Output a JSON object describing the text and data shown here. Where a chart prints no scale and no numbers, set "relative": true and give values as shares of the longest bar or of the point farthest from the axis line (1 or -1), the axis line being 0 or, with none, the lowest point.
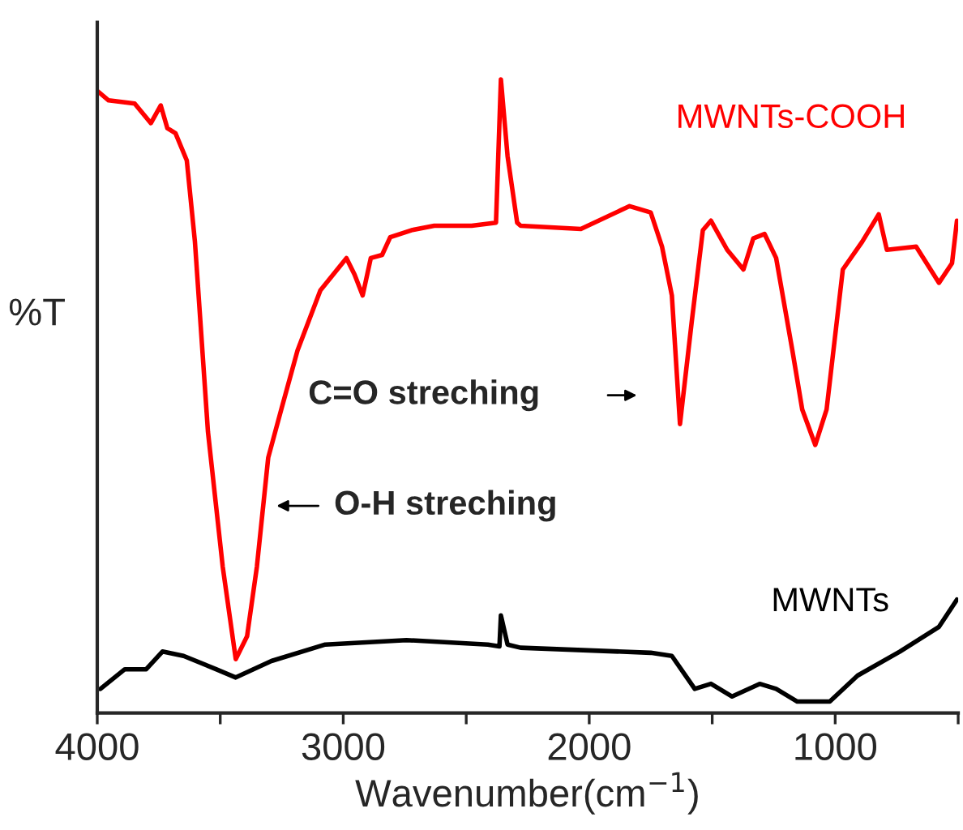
{
  "chart_data": {
    "type": "line",
    "relative": true,
    "xlabel": "Wavenumber(cm$^{−1}$)",
    "ylabel": "%T",
    "xlim": [
      4000,
      500
    ],
    "xticks": [
      4000,
      {
        "value": 3500,
        "label": null
      },
      3000,
      {
        "value": 2500,
        "label": null
      },
      2000,
      {
        "value": 1500,
        "label": null
      },
      1000,
      {
        "value": 500,
        "label": null
      }
    ],
    "grid": false,
    "legend": false,
    "line_style": "solid",
    "marker": "none",
    "series": [
      {
        "name": "MWNTs-COOH",
        "color": "#ff0000",
        "x": [
          4000,
          3954,
          3848,
          3782,
          3742,
          3715,
          3682,
          3636,
          3603,
          3550,
          3490,
          3437,
          3391,
          3351,
          3305,
          3252,
          3186,
          3093,
          2987,
          2954,
          2921,
          2888,
          2842,
          2809,
          2723,
          2630,
          2478,
          2379,
          2359,
          2332,
          2293,
          2279,
          2034,
          1836,
          1750,
          1704,
          1664,
          1631,
          1584,
          1538,
          1505,
          1439,
          1373,
          1333,
          1287,
          1240,
          1174,
          1134,
          1081,
          1035,
          969,
          890,
          823,
          790,
          671,
          578,
          525,
          505
        ],
        "values": [
          0.982,
          0.967,
          0.962,
          0.931,
          0.959,
          0.923,
          0.915,
          0.872,
          0.744,
          0.444,
          0.231,
          0.085,
          0.121,
          0.231,
          0.403,
          0.479,
          0.572,
          0.667,
          0.718,
          0.692,
          0.659,
          0.718,
          0.723,
          0.751,
          0.762,
          0.769,
          0.769,
          0.774,
          1.0,
          0.879,
          0.774,
          0.769,
          0.764,
          0.8,
          0.79,
          0.736,
          0.659,
          0.456,
          0.615,
          0.762,
          0.777,
          0.731,
          0.7,
          0.749,
          0.756,
          0.718,
          0.572,
          0.479,
          0.423,
          0.479,
          0.7,
          0.744,
          0.787,
          0.731,
          0.736,
          0.679,
          0.71,
          0.777
        ]
      },
      {
        "name": "MWNTs",
        "color": "#000000",
        "x": [
          3987,
          3888,
          3801,
          3735,
          3649,
          3517,
          3437,
          3292,
          3073,
          2743,
          2412,
          2365,
          2359,
          2332,
          2279,
          1750,
          1664,
          1571,
          1505,
          1419,
          1307,
          1240,
          1154,
          1022,
          909,
          737,
          578,
          505
        ],
        "values": [
          0.038,
          0.069,
          0.069,
          0.097,
          0.09,
          0.069,
          0.056,
          0.082,
          0.108,
          0.115,
          0.108,
          0.105,
          0.154,
          0.108,
          0.103,
          0.095,
          0.09,
          0.038,
          0.046,
          0.026,
          0.046,
          0.038,
          0.018,
          0.018,
          0.059,
          0.097,
          0.136,
          0.179
        ]
      }
    ],
    "annotations": [
      "C=O streching",
      "O-H streching"
    ]
  }
}
